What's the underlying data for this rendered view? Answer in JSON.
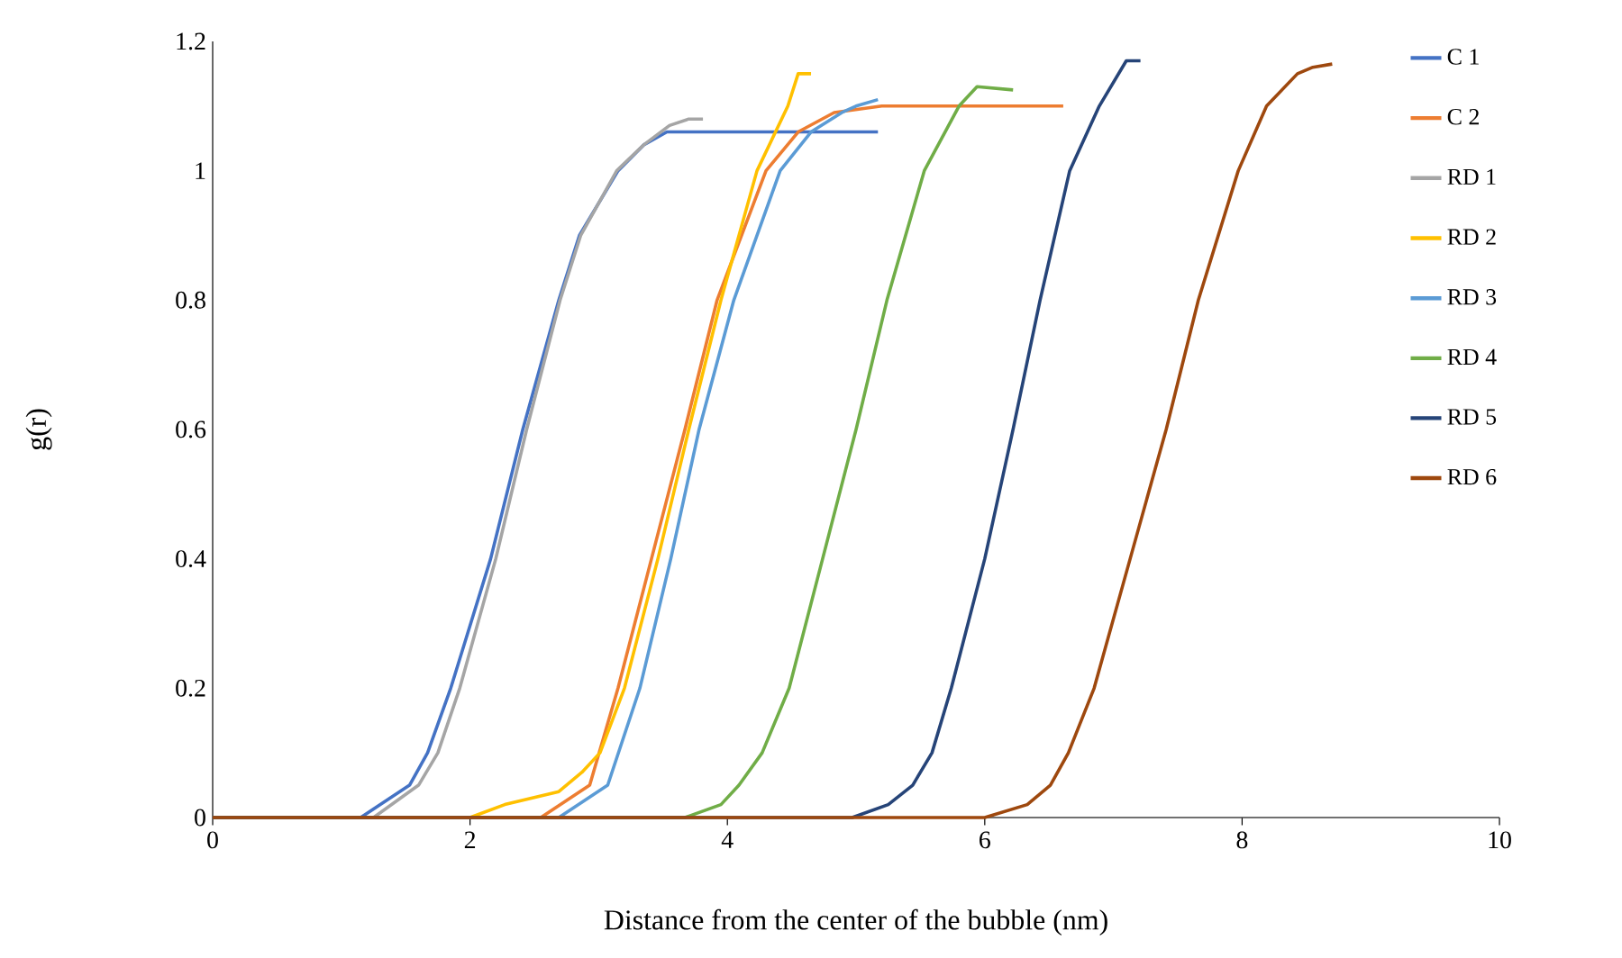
{
  "chart_data": {
    "type": "line",
    "xlabel": "Distance from the center of the bubble (nm)",
    "ylabel": "g(r)",
    "xlim": [
      0,
      10
    ],
    "ylim": [
      0,
      1.2
    ],
    "xticks": [
      0,
      2,
      4,
      6,
      8,
      10
    ],
    "yticks": [
      0,
      0.2,
      0.4,
      0.6,
      0.8,
      1,
      1.2
    ],
    "legend": "right",
    "grid": false,
    "marker": "none",
    "line_style": "solid",
    "series": [
      {
        "name": "C 1",
        "color": "#4472c4",
        "x": [
          0,
          1.15,
          1.53,
          1.67,
          1.85,
          2.16,
          2.41,
          2.69,
          2.85,
          3.15,
          3.35,
          3.53,
          4.0,
          4.5,
          5.0,
          5.17
        ],
        "values": [
          0,
          0,
          0.05,
          0.1,
          0.2,
          0.4,
          0.6,
          0.8,
          0.9,
          1.0,
          1.04,
          1.06,
          1.06,
          1.06,
          1.06,
          1.06
        ]
      },
      {
        "name": "C 2",
        "color": "#ed7d31",
        "x": [
          0,
          2.55,
          2.93,
          3.15,
          3.41,
          3.67,
          3.92,
          4.3,
          4.55,
          4.83,
          5.2,
          5.6,
          6.0,
          6.3,
          6.61
        ],
        "values": [
          0,
          0,
          0.05,
          0.2,
          0.4,
          0.6,
          0.8,
          1.0,
          1.06,
          1.09,
          1.1,
          1.1,
          1.1,
          1.1,
          1.1
        ]
      },
      {
        "name": "RD 1",
        "color": "#a5a5a5",
        "x": [
          0,
          1.25,
          1.6,
          1.75,
          1.92,
          2.2,
          2.44,
          2.7,
          2.86,
          3.14,
          3.35,
          3.55,
          3.7,
          3.81
        ],
        "values": [
          0,
          0,
          0.05,
          0.1,
          0.2,
          0.4,
          0.6,
          0.8,
          0.9,
          1.0,
          1.04,
          1.07,
          1.08,
          1.08
        ]
      },
      {
        "name": "RD 2",
        "color": "#ffc000",
        "x": [
          0,
          2.0,
          2.27,
          2.69,
          2.87,
          3.01,
          3.2,
          3.46,
          3.7,
          3.95,
          4.23,
          4.47,
          4.55,
          4.65
        ],
        "values": [
          0,
          0,
          0.02,
          0.04,
          0.07,
          0.1,
          0.2,
          0.4,
          0.6,
          0.8,
          1.0,
          1.1,
          1.15,
          1.15
        ]
      },
      {
        "name": "RD 3",
        "color": "#5b9bd5",
        "x": [
          0,
          2.69,
          3.07,
          3.32,
          3.56,
          3.78,
          4.05,
          4.41,
          4.65,
          4.89,
          5.0,
          5.17
        ],
        "values": [
          0,
          0,
          0.05,
          0.2,
          0.4,
          0.6,
          0.8,
          1.0,
          1.06,
          1.09,
          1.1,
          1.11
        ]
      },
      {
        "name": "RD 4",
        "color": "#70ad47",
        "x": [
          0,
          3.67,
          3.95,
          4.09,
          4.27,
          4.48,
          4.74,
          5.0,
          5.24,
          5.53,
          5.8,
          5.94,
          6.22
        ],
        "values": [
          0,
          0,
          0.02,
          0.05,
          0.1,
          0.2,
          0.4,
          0.6,
          0.8,
          1.0,
          1.1,
          1.13,
          1.125
        ]
      },
      {
        "name": "RD 5",
        "color": "#264478",
        "x": [
          0,
          4.97,
          5.25,
          5.44,
          5.59,
          5.74,
          6.0,
          6.22,
          6.43,
          6.66,
          6.89,
          7.1,
          7.21
        ],
        "values": [
          0,
          0,
          0.02,
          0.05,
          0.1,
          0.2,
          0.4,
          0.6,
          0.8,
          1.0,
          1.1,
          1.17,
          1.17
        ]
      },
      {
        "name": "RD 6",
        "color": "#9e480e",
        "x": [
          0,
          6.0,
          6.33,
          6.51,
          6.65,
          6.85,
          7.13,
          7.41,
          7.66,
          7.97,
          8.19,
          8.43,
          8.55,
          8.7
        ],
        "values": [
          0,
          0,
          0.02,
          0.05,
          0.1,
          0.2,
          0.4,
          0.6,
          0.8,
          1.0,
          1.1,
          1.15,
          1.16,
          1.165
        ]
      }
    ]
  }
}
